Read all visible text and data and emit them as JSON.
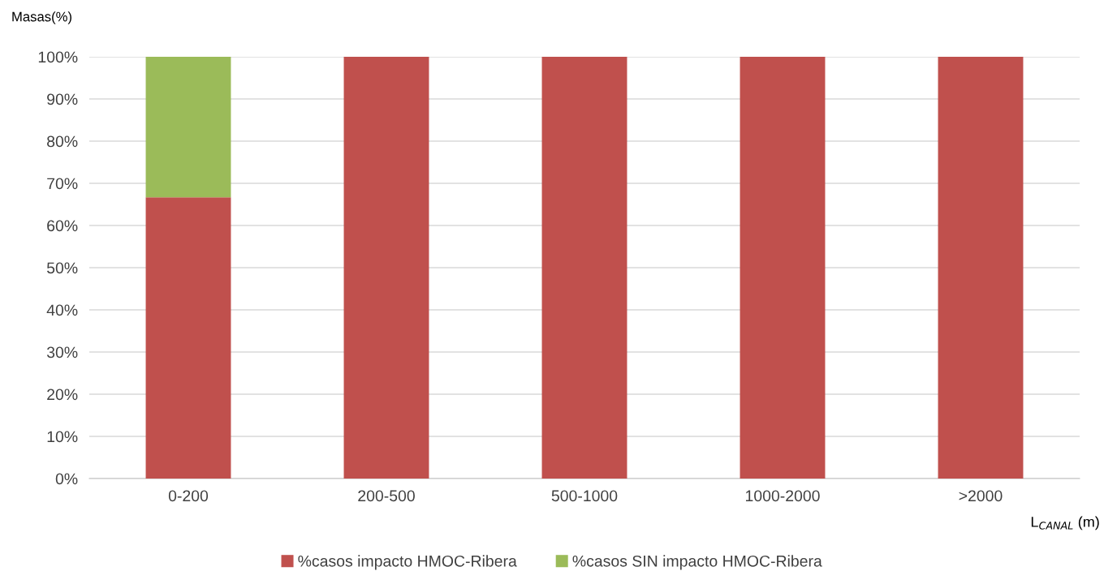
{
  "chart_data": {
    "type": "bar",
    "stacked": true,
    "xlabel": "L$_{CANAL}$ (m)",
    "ylabel": "Masas(%)",
    "categories": [
      "0-200",
      "200-500",
      "500-1000",
      "1000-2000",
      ">2000"
    ],
    "series": [
      {
        "name": "%casos impacto HMOC-Ribera",
        "color": "#c0504d",
        "values": [
          66.7,
          100,
          100,
          100,
          100
        ]
      },
      {
        "name": "%casos SIN impacto HMOC-Ribera",
        "color": "#9bbb59",
        "values": [
          33.3,
          0,
          0,
          0,
          0
        ]
      }
    ],
    "ylim": [
      0,
      100
    ],
    "yticks": [
      {
        "value": 0,
        "label": "0%"
      },
      {
        "value": 10,
        "label": "10%"
      },
      {
        "value": 20,
        "label": "20%"
      },
      {
        "value": 30,
        "label": "30%"
      },
      {
        "value": 40,
        "label": "40%"
      },
      {
        "value": 50,
        "label": "50%"
      },
      {
        "value": 60,
        "label": "60%"
      },
      {
        "value": 70,
        "label": "70%"
      },
      {
        "value": 80,
        "label": "80%"
      },
      {
        "value": 90,
        "label": "90%"
      },
      {
        "value": 100,
        "label": "100%"
      }
    ],
    "grid": "y",
    "legend": "bottom"
  }
}
